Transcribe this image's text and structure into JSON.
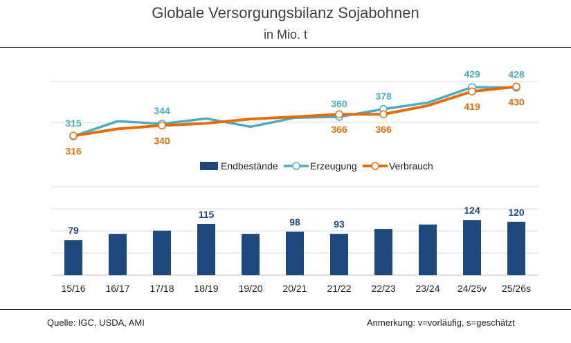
{
  "title": "Globale Versorgungsbilanz Sojabohnen",
  "subtitle": "in Mio. t",
  "source": "Quelle: IGC, USDA, AMI",
  "note": "Anmerkung: v=vorläufig, s=geschätzt",
  "colors": {
    "bar": "#1f497d",
    "erzeugung": "#4bacc6",
    "verbrauch": "#e46c0a",
    "grid": "#d9d9d9"
  },
  "chart_data": {
    "type": "bar+line",
    "categories": [
      "15/16",
      "16/17",
      "17/18",
      "18/19",
      "19/20",
      "20/21",
      "21/22",
      "22/23",
      "23/24",
      "24/25v",
      "25/26s"
    ],
    "legend_placement": "center",
    "series": [
      {
        "name": "Endbestände",
        "type": "bar",
        "values": [
          79,
          93,
          100,
          115,
          93,
          98,
          93,
          104,
          114,
          124,
          120
        ],
        "labels": [
          "79",
          "",
          "",
          "115",
          "",
          "98",
          "93",
          "",
          "",
          "124",
          "120"
        ]
      },
      {
        "name": "Erzeugung",
        "type": "line",
        "values": [
          315,
          350,
          344,
          356,
          337,
          358,
          360,
          378,
          393,
          429,
          428
        ],
        "labels": [
          "315",
          "",
          "344",
          "",
          "",
          "",
          "360",
          "378",
          "",
          "429",
          "428"
        ]
      },
      {
        "name": "Verbrauch",
        "type": "line",
        "values": [
          316,
          332,
          340,
          345,
          355,
          360,
          366,
          366,
          386,
          419,
          430
        ],
        "labels": [
          "316",
          "",
          "340",
          "",
          "",
          "",
          "366",
          "366",
          "",
          "419",
          "430"
        ]
      }
    ],
    "grid": true
  }
}
